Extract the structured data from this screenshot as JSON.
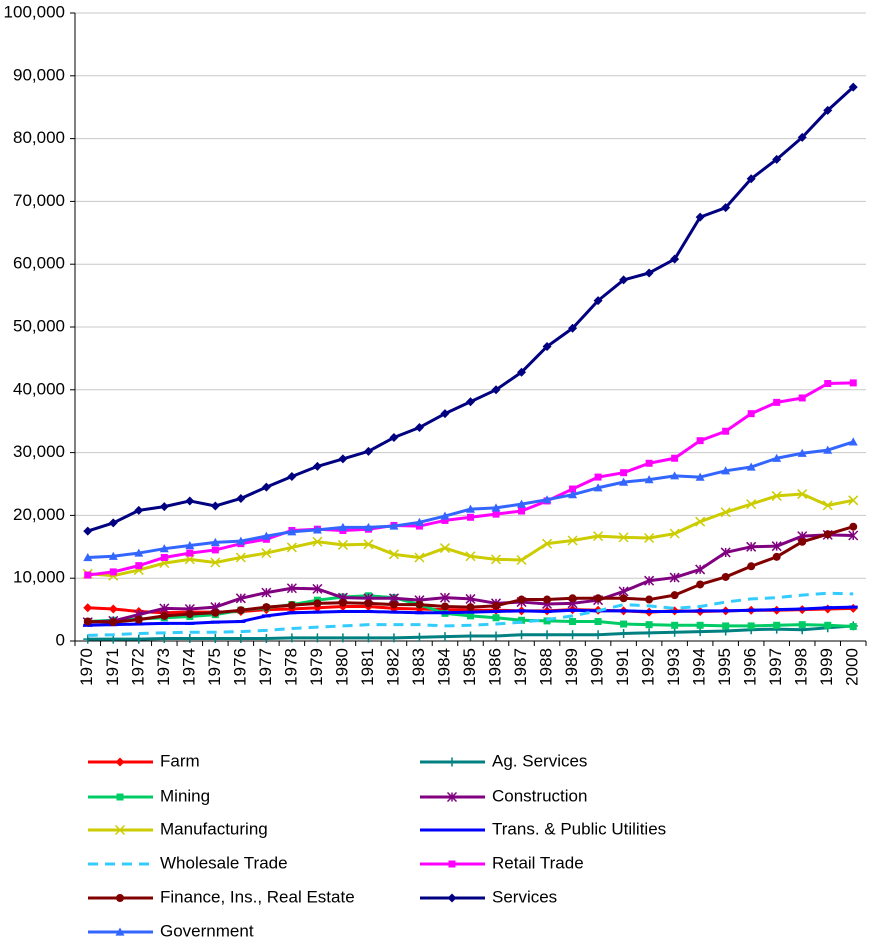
{
  "chart_data": {
    "type": "line",
    "categories": [
      "1970",
      "1971",
      "1972",
      "1973",
      "1974",
      "1975",
      "1976",
      "1977",
      "1978",
      "1979",
      "1980",
      "1981",
      "1982",
      "1983",
      "1984",
      "1985",
      "1986",
      "1987",
      "1988",
      "1989",
      "1990",
      "1991",
      "1992",
      "1993",
      "1994",
      "1995",
      "1996",
      "1997",
      "1998",
      "1999",
      "2000"
    ],
    "ylim": [
      0,
      100000
    ],
    "yticks": [
      0,
      {
        "value": 10000,
        "label": "10,000"
      },
      {
        "value": 20000,
        "label": "20,000"
      },
      {
        "value": 30000,
        "label": "30,000"
      },
      {
        "value": 40000,
        "label": "40,000"
      },
      {
        "value": 50000,
        "label": "50,000"
      },
      {
        "value": 60000,
        "label": "60,000"
      },
      {
        "value": 70000,
        "label": "70,000"
      },
      {
        "value": 80000,
        "label": "80,000"
      },
      {
        "value": 90000,
        "label": "90,000"
      },
      {
        "value": 100000,
        "label": "100,000"
      }
    ],
    "grid": true,
    "series": [
      {
        "name": "Farm",
        "color": "#ff0000",
        "marker": "diamond",
        "values": [
          5300,
          5100,
          4700,
          4500,
          4600,
          4600,
          4700,
          5000,
          5100,
          5300,
          5500,
          5500,
          5200,
          5100,
          5000,
          4900,
          4900,
          4800,
          4800,
          5000,
          4900,
          4800,
          4600,
          4800,
          4700,
          4800,
          4900,
          4900,
          5000,
          5100,
          5200
        ]
      },
      {
        "name": "Ag. Services",
        "color": "#008080",
        "marker": "plus",
        "values": [
          300,
          300,
          300,
          400,
          400,
          400,
          400,
          400,
          500,
          500,
          500,
          500,
          500,
          600,
          700,
          800,
          800,
          1000,
          1000,
          1000,
          1000,
          1200,
          1300,
          1400,
          1500,
          1600,
          1800,
          1900,
          1800,
          2100,
          2400
        ]
      },
      {
        "name": "Mining",
        "color": "#00cc66",
        "marker": "square",
        "values": [
          3100,
          3300,
          3500,
          3700,
          3900,
          4200,
          4900,
          5300,
          5800,
          6500,
          7000,
          7200,
          6900,
          5800,
          4400,
          4000,
          3700,
          3300,
          3200,
          3100,
          3100,
          2700,
          2600,
          2500,
          2500,
          2400,
          2400,
          2500,
          2600,
          2500,
          2300
        ]
      },
      {
        "name": "Construction",
        "color": "#800080",
        "marker": "star",
        "values": [
          3000,
          3200,
          4200,
          5200,
          5100,
          5400,
          6800,
          7700,
          8400,
          8300,
          6900,
          6800,
          6800,
          6500,
          6900,
          6700,
          6000,
          6200,
          5900,
          6000,
          6500,
          7900,
          9600,
          10100,
          11400,
          14100,
          15000,
          15100,
          16700,
          16900,
          16800
        ]
      },
      {
        "name": "Manufacturing",
        "color": "#cccc00",
        "marker": "x",
        "values": [
          10700,
          10400,
          11300,
          12400,
          13000,
          12500,
          13300,
          14000,
          14900,
          15800,
          15300,
          15400,
          13800,
          13300,
          14800,
          13500,
          13000,
          12900,
          15500,
          16000,
          16700,
          16500,
          16400,
          17100,
          19000,
          20500,
          21800,
          23100,
          23400,
          21600,
          22400
        ]
      },
      {
        "name": "Trans. & Public Utilities",
        "color": "#0000ff",
        "marker": "dash",
        "values": [
          2500,
          2600,
          2700,
          2800,
          2800,
          3000,
          3100,
          4000,
          4500,
          4600,
          4700,
          4700,
          4600,
          4500,
          4500,
          4600,
          4700,
          4800,
          4700,
          4900,
          4800,
          4800,
          4700,
          4700,
          4800,
          4800,
          4900,
          5000,
          5100,
          5300,
          5400
        ]
      },
      {
        "name": "Wholesale Trade",
        "color": "#33ccff",
        "marker": "none",
        "dashed": true,
        "values": [
          900,
          1000,
          1200,
          1300,
          1400,
          1400,
          1500,
          1700,
          2000,
          2200,
          2400,
          2600,
          2600,
          2600,
          2400,
          2500,
          2700,
          3000,
          3400,
          4000,
          4800,
          5800,
          5600,
          5200,
          5500,
          6200,
          6700,
          6900,
          7300,
          7600,
          7500
        ]
      },
      {
        "name": "Retail Trade",
        "color": "#ff00ff",
        "marker": "square",
        "values": [
          10500,
          11000,
          12000,
          13300,
          14000,
          14500,
          15500,
          16200,
          17600,
          17800,
          17600,
          17800,
          18400,
          18300,
          19200,
          19700,
          20200,
          20700,
          22300,
          24200,
          26100,
          26800,
          28300,
          29100,
          31900,
          33400,
          36200,
          38000,
          38700,
          41000,
          41100
        ]
      },
      {
        "name": "Finance, Ins., Real Estate",
        "color": "#800000",
        "marker": "circle",
        "values": [
          3100,
          3000,
          3400,
          4000,
          4300,
          4500,
          4900,
          5400,
          5700,
          6000,
          6100,
          6000,
          5800,
          5800,
          5500,
          5400,
          5600,
          6600,
          6600,
          6800,
          6800,
          6800,
          6600,
          7300,
          9000,
          10200,
          11900,
          13400,
          15800,
          17000,
          18200
        ]
      },
      {
        "name": "Services",
        "color": "#000080",
        "marker": "diamond",
        "values": [
          17500,
          18800,
          20800,
          21400,
          22300,
          21500,
          22700,
          24500,
          26200,
          27800,
          29000,
          30200,
          32400,
          34000,
          36200,
          38100,
          40000,
          42800,
          46900,
          49800,
          54200,
          57500,
          58600,
          60800,
          67500,
          69000,
          73600,
          76700,
          80200,
          84500,
          88200
        ]
      },
      {
        "name": "Government",
        "color": "#3366ff",
        "marker": "triangle",
        "values": [
          13300,
          13500,
          14000,
          14700,
          15200,
          15700,
          15900,
          16700,
          17400,
          17700,
          18100,
          18100,
          18300,
          18900,
          19900,
          21000,
          21200,
          21800,
          22500,
          23300,
          24400,
          25300,
          25700,
          26300,
          26100,
          27100,
          27700,
          29100,
          29900,
          30400,
          31700
        ]
      }
    ]
  }
}
